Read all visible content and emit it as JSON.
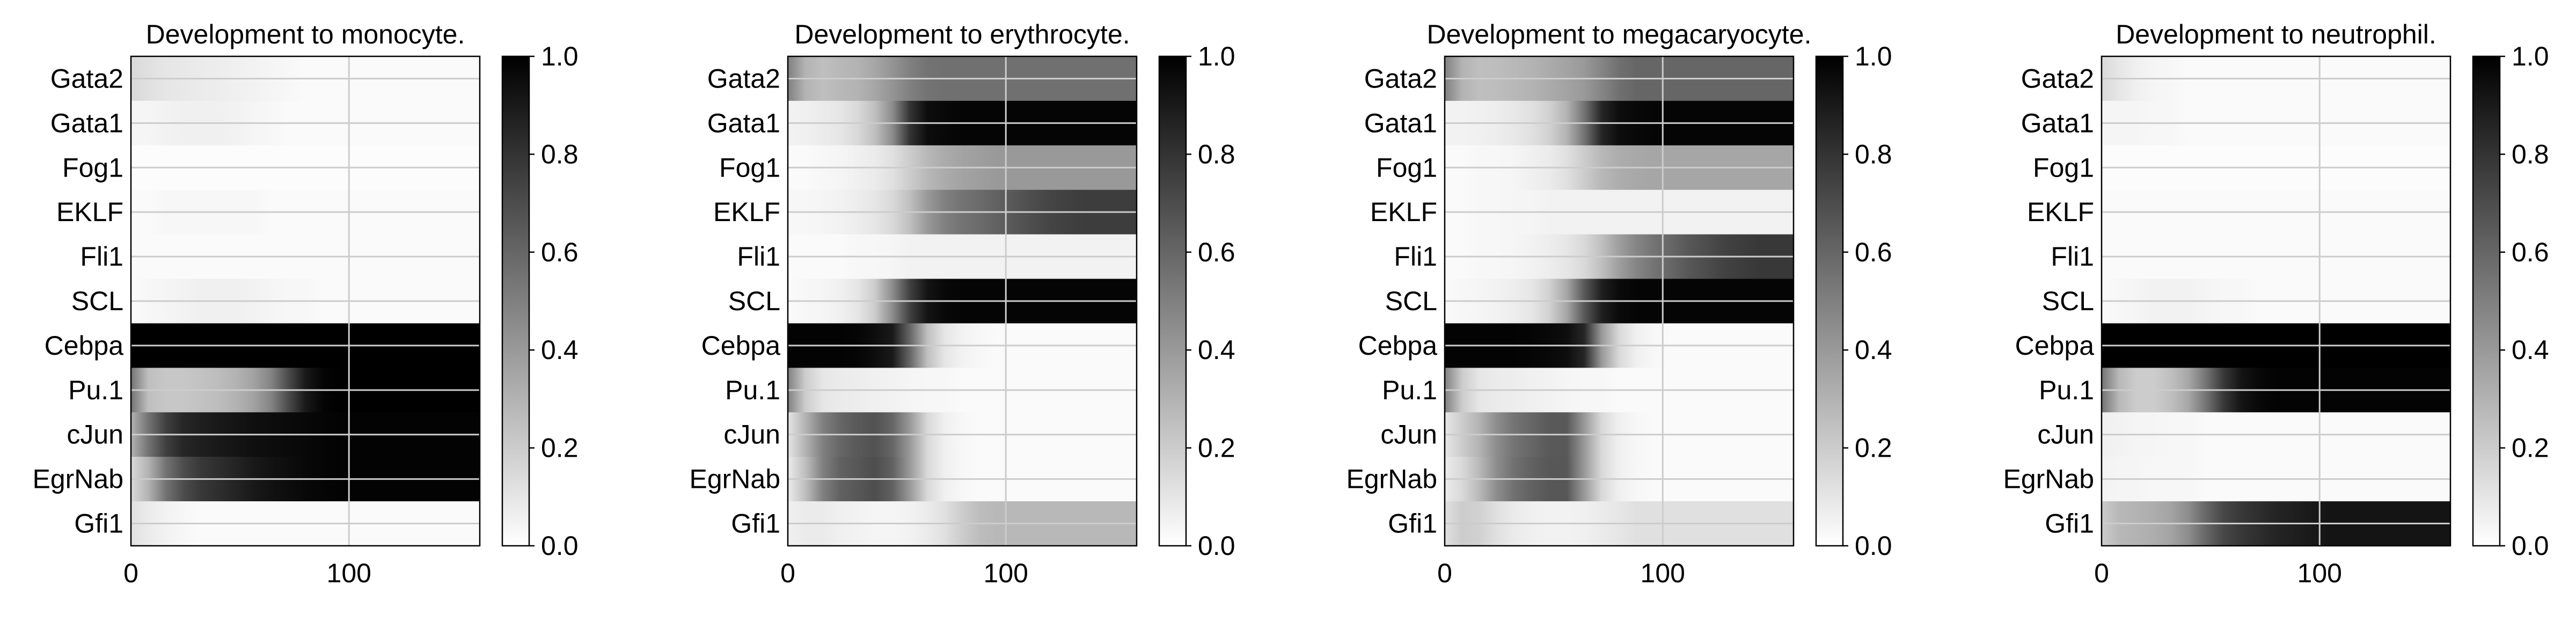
{
  "figure": {
    "colormap": {
      "low": "#ffffff",
      "high": "#000000"
    },
    "grid_color": "#cccccc"
  },
  "chart_data": [
    {
      "type": "heatmap",
      "title": "Development to monocyte.",
      "genes": [
        "Gata2",
        "Gata1",
        "Fog1",
        "EKLF",
        "Fli1",
        "SCL",
        "Cebpa",
        "Pu.1",
        "cJun",
        "EgrNab",
        "Gfi1"
      ],
      "x_time": [
        0,
        8,
        16,
        24,
        32,
        40,
        48,
        56,
        64,
        72,
        80,
        88,
        96,
        104,
        112,
        120,
        128,
        136,
        144,
        152,
        160
      ],
      "x_ticks": [
        0,
        100
      ],
      "xlim": [
        0,
        160
      ],
      "colorbar": {
        "ticks": [
          0.0,
          0.2,
          0.4,
          0.6,
          0.8,
          1.0
        ],
        "range": [
          0,
          1
        ]
      },
      "values": [
        [
          0.15,
          0.12,
          0.1,
          0.09,
          0.08,
          0.07,
          0.06,
          0.05,
          0.04,
          0.03,
          0.02,
          0.02,
          0.02,
          0.02,
          0.02,
          0.02,
          0.02,
          0.02,
          0.02,
          0.02,
          0.02
        ],
        [
          0.04,
          0.04,
          0.05,
          0.06,
          0.06,
          0.06,
          0.05,
          0.04,
          0.03,
          0.02,
          0.02,
          0.02,
          0.02,
          0.02,
          0.02,
          0.02,
          0.02,
          0.02,
          0.02,
          0.02,
          0.02
        ],
        [
          0.01,
          0.01,
          0.01,
          0.01,
          0.01,
          0.01,
          0.01,
          0.01,
          0.01,
          0.01,
          0.01,
          0.01,
          0.01,
          0.01,
          0.01,
          0.01,
          0.01,
          0.01,
          0.01,
          0.01,
          0.01
        ],
        [
          0.02,
          0.02,
          0.03,
          0.03,
          0.03,
          0.03,
          0.03,
          0.03,
          0.02,
          0.02,
          0.02,
          0.02,
          0.02,
          0.02,
          0.02,
          0.02,
          0.02,
          0.02,
          0.02,
          0.02,
          0.02
        ],
        [
          0.02,
          0.02,
          0.02,
          0.02,
          0.02,
          0.02,
          0.02,
          0.02,
          0.02,
          0.02,
          0.02,
          0.02,
          0.02,
          0.02,
          0.02,
          0.02,
          0.02,
          0.02,
          0.02,
          0.02,
          0.02
        ],
        [
          0.02,
          0.03,
          0.04,
          0.05,
          0.06,
          0.06,
          0.06,
          0.05,
          0.04,
          0.03,
          0.03,
          0.02,
          0.02,
          0.02,
          0.02,
          0.02,
          0.02,
          0.02,
          0.02,
          0.02,
          0.02
        ],
        [
          1.0,
          1.0,
          1.0,
          1.0,
          1.0,
          1.0,
          1.0,
          1.0,
          1.0,
          1.0,
          1.0,
          1.0,
          1.0,
          1.0,
          1.0,
          1.0,
          1.0,
          1.0,
          1.0,
          1.0,
          1.0
        ],
        [
          0.55,
          0.25,
          0.22,
          0.22,
          0.24,
          0.26,
          0.3,
          0.36,
          0.48,
          0.7,
          0.9,
          0.98,
          1.0,
          1.0,
          1.0,
          1.0,
          1.0,
          1.0,
          1.0,
          1.0,
          1.0
        ],
        [
          0.3,
          0.55,
          0.75,
          0.85,
          0.88,
          0.9,
          0.92,
          0.94,
          0.95,
          0.96,
          0.97,
          0.98,
          0.99,
          0.99,
          0.99,
          0.99,
          0.99,
          0.99,
          0.99,
          0.99,
          0.99
        ],
        [
          0.15,
          0.3,
          0.55,
          0.7,
          0.78,
          0.82,
          0.86,
          0.9,
          0.93,
          0.95,
          0.97,
          0.98,
          0.99,
          0.99,
          0.99,
          0.99,
          0.99,
          0.99,
          0.99,
          0.99,
          0.99
        ],
        [
          0.12,
          0.08,
          0.05,
          0.03,
          0.02,
          0.02,
          0.02,
          0.02,
          0.02,
          0.02,
          0.02,
          0.02,
          0.02,
          0.02,
          0.02,
          0.02,
          0.02,
          0.02,
          0.02,
          0.02,
          0.02
        ]
      ]
    },
    {
      "type": "heatmap",
      "title": "Development to erythrocyte.",
      "genes": [
        "Gata2",
        "Gata1",
        "Fog1",
        "EKLF",
        "Fli1",
        "SCL",
        "Cebpa",
        "Pu.1",
        "cJun",
        "EgrNab",
        "Gfi1"
      ],
      "x_time": [
        0,
        8,
        16,
        24,
        32,
        40,
        48,
        56,
        64,
        72,
        80,
        88,
        96,
        104,
        112,
        120,
        128,
        136,
        144,
        152,
        160
      ],
      "x_ticks": [
        0,
        100
      ],
      "xlim": [
        0,
        160
      ],
      "colorbar": {
        "ticks": [
          0.0,
          0.2,
          0.4,
          0.6,
          0.8,
          1.0
        ],
        "range": [
          0,
          1
        ]
      },
      "values": [
        [
          0.5,
          0.3,
          0.25,
          0.28,
          0.3,
          0.35,
          0.42,
          0.5,
          0.55,
          0.56,
          0.56,
          0.56,
          0.56,
          0.56,
          0.56,
          0.56,
          0.56,
          0.56,
          0.56,
          0.56,
          0.56
        ],
        [
          0.05,
          0.06,
          0.08,
          0.1,
          0.15,
          0.25,
          0.45,
          0.8,
          0.95,
          0.97,
          0.98,
          0.98,
          0.98,
          0.98,
          0.98,
          0.98,
          0.98,
          0.98,
          0.98,
          0.98,
          0.98
        ],
        [
          0.02,
          0.02,
          0.03,
          0.04,
          0.06,
          0.08,
          0.12,
          0.2,
          0.28,
          0.33,
          0.36,
          0.38,
          0.4,
          0.4,
          0.4,
          0.4,
          0.4,
          0.4,
          0.4,
          0.4,
          0.4
        ],
        [
          0.03,
          0.03,
          0.04,
          0.05,
          0.07,
          0.1,
          0.15,
          0.25,
          0.4,
          0.5,
          0.55,
          0.58,
          0.62,
          0.66,
          0.7,
          0.73,
          0.75,
          0.76,
          0.76,
          0.76,
          0.76
        ],
        [
          0.02,
          0.02,
          0.02,
          0.02,
          0.03,
          0.03,
          0.04,
          0.05,
          0.05,
          0.05,
          0.05,
          0.05,
          0.05,
          0.05,
          0.05,
          0.05,
          0.05,
          0.05,
          0.05,
          0.05,
          0.05
        ],
        [
          0.02,
          0.03,
          0.04,
          0.06,
          0.1,
          0.2,
          0.45,
          0.75,
          0.92,
          0.97,
          0.98,
          0.98,
          0.98,
          0.98,
          0.98,
          0.98,
          0.98,
          0.98,
          0.98,
          0.98,
          0.98
        ],
        [
          0.99,
          0.99,
          0.99,
          0.99,
          0.98,
          0.95,
          0.9,
          0.6,
          0.25,
          0.1,
          0.05,
          0.03,
          0.02,
          0.02,
          0.02,
          0.02,
          0.02,
          0.02,
          0.02,
          0.02,
          0.02
        ],
        [
          0.5,
          0.2,
          0.1,
          0.08,
          0.07,
          0.06,
          0.05,
          0.04,
          0.03,
          0.03,
          0.02,
          0.02,
          0.02,
          0.02,
          0.02,
          0.02,
          0.02,
          0.02,
          0.02,
          0.02,
          0.02
        ],
        [
          0.1,
          0.3,
          0.5,
          0.6,
          0.65,
          0.68,
          0.6,
          0.4,
          0.15,
          0.06,
          0.03,
          0.02,
          0.02,
          0.02,
          0.02,
          0.02,
          0.02,
          0.02,
          0.02,
          0.02,
          0.02
        ],
        [
          0.08,
          0.25,
          0.5,
          0.62,
          0.66,
          0.7,
          0.62,
          0.4,
          0.15,
          0.06,
          0.03,
          0.02,
          0.02,
          0.02,
          0.02,
          0.02,
          0.02,
          0.02,
          0.02,
          0.02,
          0.02
        ],
        [
          0.06,
          0.08,
          0.08,
          0.06,
          0.05,
          0.04,
          0.04,
          0.05,
          0.08,
          0.12,
          0.2,
          0.26,
          0.28,
          0.28,
          0.28,
          0.28,
          0.28,
          0.28,
          0.28,
          0.28,
          0.28
        ]
      ]
    },
    {
      "type": "heatmap",
      "title": "Development to megacaryocyte.",
      "genes": [
        "Gata2",
        "Gata1",
        "Fog1",
        "EKLF",
        "Fli1",
        "SCL",
        "Cebpa",
        "Pu.1",
        "cJun",
        "EgrNab",
        "Gfi1"
      ],
      "x_time": [
        0,
        8,
        16,
        24,
        32,
        40,
        48,
        56,
        64,
        72,
        80,
        88,
        96,
        104,
        112,
        120,
        128,
        136,
        144,
        152,
        160
      ],
      "x_ticks": [
        0,
        100
      ],
      "xlim": [
        0,
        160
      ],
      "colorbar": {
        "ticks": [
          0.0,
          0.2,
          0.4,
          0.6,
          0.8,
          1.0
        ],
        "range": [
          0,
          1
        ]
      },
      "values": [
        [
          0.5,
          0.3,
          0.25,
          0.26,
          0.28,
          0.3,
          0.33,
          0.36,
          0.4,
          0.48,
          0.56,
          0.6,
          0.6,
          0.6,
          0.6,
          0.6,
          0.6,
          0.6,
          0.6,
          0.6,
          0.6
        ],
        [
          0.05,
          0.05,
          0.06,
          0.07,
          0.09,
          0.12,
          0.18,
          0.3,
          0.55,
          0.85,
          0.95,
          0.97,
          0.98,
          0.98,
          0.98,
          0.98,
          0.98,
          0.98,
          0.98,
          0.98,
          0.98
        ],
        [
          0.02,
          0.02,
          0.03,
          0.03,
          0.04,
          0.06,
          0.08,
          0.12,
          0.2,
          0.28,
          0.32,
          0.34,
          0.35,
          0.35,
          0.35,
          0.35,
          0.35,
          0.35,
          0.35,
          0.35,
          0.35
        ],
        [
          0.02,
          0.02,
          0.03,
          0.03,
          0.04,
          0.04,
          0.05,
          0.05,
          0.05,
          0.05,
          0.05,
          0.05,
          0.05,
          0.05,
          0.05,
          0.05,
          0.05,
          0.05,
          0.05,
          0.05,
          0.05
        ],
        [
          0.02,
          0.02,
          0.03,
          0.03,
          0.04,
          0.05,
          0.07,
          0.1,
          0.15,
          0.25,
          0.38,
          0.48,
          0.55,
          0.6,
          0.66,
          0.7,
          0.74,
          0.76,
          0.78,
          0.78,
          0.78
        ],
        [
          0.02,
          0.03,
          0.04,
          0.05,
          0.07,
          0.1,
          0.18,
          0.35,
          0.65,
          0.88,
          0.96,
          0.98,
          0.98,
          0.98,
          0.98,
          0.98,
          0.98,
          0.98,
          0.98,
          0.98,
          0.98
        ],
        [
          0.99,
          0.99,
          0.99,
          0.99,
          0.99,
          0.98,
          0.97,
          0.95,
          0.85,
          0.4,
          0.15,
          0.06,
          0.03,
          0.02,
          0.02,
          0.02,
          0.02,
          0.02,
          0.02,
          0.02,
          0.02
        ],
        [
          0.5,
          0.2,
          0.1,
          0.08,
          0.07,
          0.06,
          0.05,
          0.04,
          0.03,
          0.03,
          0.02,
          0.02,
          0.02,
          0.02,
          0.02,
          0.02,
          0.02,
          0.02,
          0.02,
          0.02,
          0.02
        ],
        [
          0.1,
          0.2,
          0.3,
          0.45,
          0.55,
          0.6,
          0.65,
          0.65,
          0.4,
          0.15,
          0.06,
          0.03,
          0.02,
          0.02,
          0.02,
          0.02,
          0.02,
          0.02,
          0.02,
          0.02,
          0.02
        ],
        [
          0.08,
          0.15,
          0.28,
          0.45,
          0.56,
          0.62,
          0.66,
          0.66,
          0.4,
          0.15,
          0.06,
          0.03,
          0.02,
          0.02,
          0.02,
          0.02,
          0.02,
          0.02,
          0.02,
          0.02,
          0.02
        ],
        [
          0.12,
          0.2,
          0.18,
          0.12,
          0.08,
          0.06,
          0.05,
          0.05,
          0.06,
          0.08,
          0.1,
          0.12,
          0.12,
          0.12,
          0.12,
          0.12,
          0.12,
          0.12,
          0.12,
          0.12,
          0.12
        ]
      ]
    },
    {
      "type": "heatmap",
      "title": "Development to neutrophil.",
      "genes": [
        "Gata2",
        "Gata1",
        "Fog1",
        "EKLF",
        "Fli1",
        "SCL",
        "Cebpa",
        "Pu.1",
        "cJun",
        "EgrNab",
        "Gfi1"
      ],
      "x_time": [
        0,
        8,
        16,
        24,
        32,
        40,
        48,
        56,
        64,
        72,
        80,
        88,
        96,
        104,
        112,
        120,
        128,
        136,
        144,
        152,
        160
      ],
      "x_ticks": [
        0,
        100
      ],
      "xlim": [
        0,
        160
      ],
      "colorbar": {
        "ticks": [
          0.0,
          0.2,
          0.4,
          0.6,
          0.8,
          1.0
        ],
        "range": [
          0,
          1
        ]
      },
      "values": [
        [
          0.15,
          0.1,
          0.06,
          0.04,
          0.03,
          0.02,
          0.02,
          0.02,
          0.02,
          0.02,
          0.02,
          0.02,
          0.02,
          0.02,
          0.02,
          0.02,
          0.02,
          0.02,
          0.02,
          0.02,
          0.02
        ],
        [
          0.04,
          0.04,
          0.04,
          0.03,
          0.03,
          0.02,
          0.02,
          0.02,
          0.02,
          0.02,
          0.02,
          0.02,
          0.02,
          0.02,
          0.02,
          0.02,
          0.02,
          0.02,
          0.02,
          0.02,
          0.02
        ],
        [
          0.01,
          0.01,
          0.01,
          0.01,
          0.01,
          0.01,
          0.01,
          0.01,
          0.01,
          0.01,
          0.01,
          0.01,
          0.01,
          0.01,
          0.01,
          0.01,
          0.01,
          0.01,
          0.01,
          0.01,
          0.01
        ],
        [
          0.02,
          0.02,
          0.02,
          0.02,
          0.02,
          0.02,
          0.02,
          0.02,
          0.02,
          0.02,
          0.02,
          0.02,
          0.02,
          0.02,
          0.02,
          0.02,
          0.02,
          0.02,
          0.02,
          0.02,
          0.02
        ],
        [
          0.02,
          0.02,
          0.02,
          0.02,
          0.02,
          0.02,
          0.02,
          0.02,
          0.02,
          0.02,
          0.02,
          0.02,
          0.02,
          0.02,
          0.02,
          0.02,
          0.02,
          0.02,
          0.02,
          0.02,
          0.02
        ],
        [
          0.02,
          0.03,
          0.04,
          0.05,
          0.05,
          0.05,
          0.04,
          0.03,
          0.03,
          0.02,
          0.02,
          0.02,
          0.02,
          0.02,
          0.02,
          0.02,
          0.02,
          0.02,
          0.02,
          0.02,
          0.02
        ],
        [
          1.0,
          1.0,
          1.0,
          1.0,
          1.0,
          1.0,
          1.0,
          1.0,
          1.0,
          1.0,
          1.0,
          1.0,
          1.0,
          1.0,
          1.0,
          1.0,
          1.0,
          1.0,
          1.0,
          1.0,
          1.0
        ],
        [
          0.55,
          0.28,
          0.2,
          0.2,
          0.25,
          0.35,
          0.55,
          0.78,
          0.92,
          0.97,
          0.99,
          0.99,
          0.99,
          0.99,
          0.99,
          0.99,
          0.99,
          0.99,
          0.99,
          0.99,
          0.99
        ],
        [
          0.06,
          0.05,
          0.04,
          0.04,
          0.03,
          0.03,
          0.02,
          0.02,
          0.02,
          0.02,
          0.02,
          0.02,
          0.02,
          0.02,
          0.02,
          0.02,
          0.02,
          0.02,
          0.02,
          0.02,
          0.02
        ],
        [
          0.05,
          0.04,
          0.04,
          0.03,
          0.03,
          0.03,
          0.02,
          0.02,
          0.02,
          0.02,
          0.02,
          0.02,
          0.02,
          0.02,
          0.02,
          0.02,
          0.02,
          0.02,
          0.02,
          0.02,
          0.02
        ],
        [
          0.2,
          0.28,
          0.3,
          0.32,
          0.36,
          0.45,
          0.6,
          0.72,
          0.78,
          0.82,
          0.86,
          0.88,
          0.9,
          0.92,
          0.92,
          0.92,
          0.92,
          0.92,
          0.92,
          0.92,
          0.92
        ]
      ]
    }
  ]
}
